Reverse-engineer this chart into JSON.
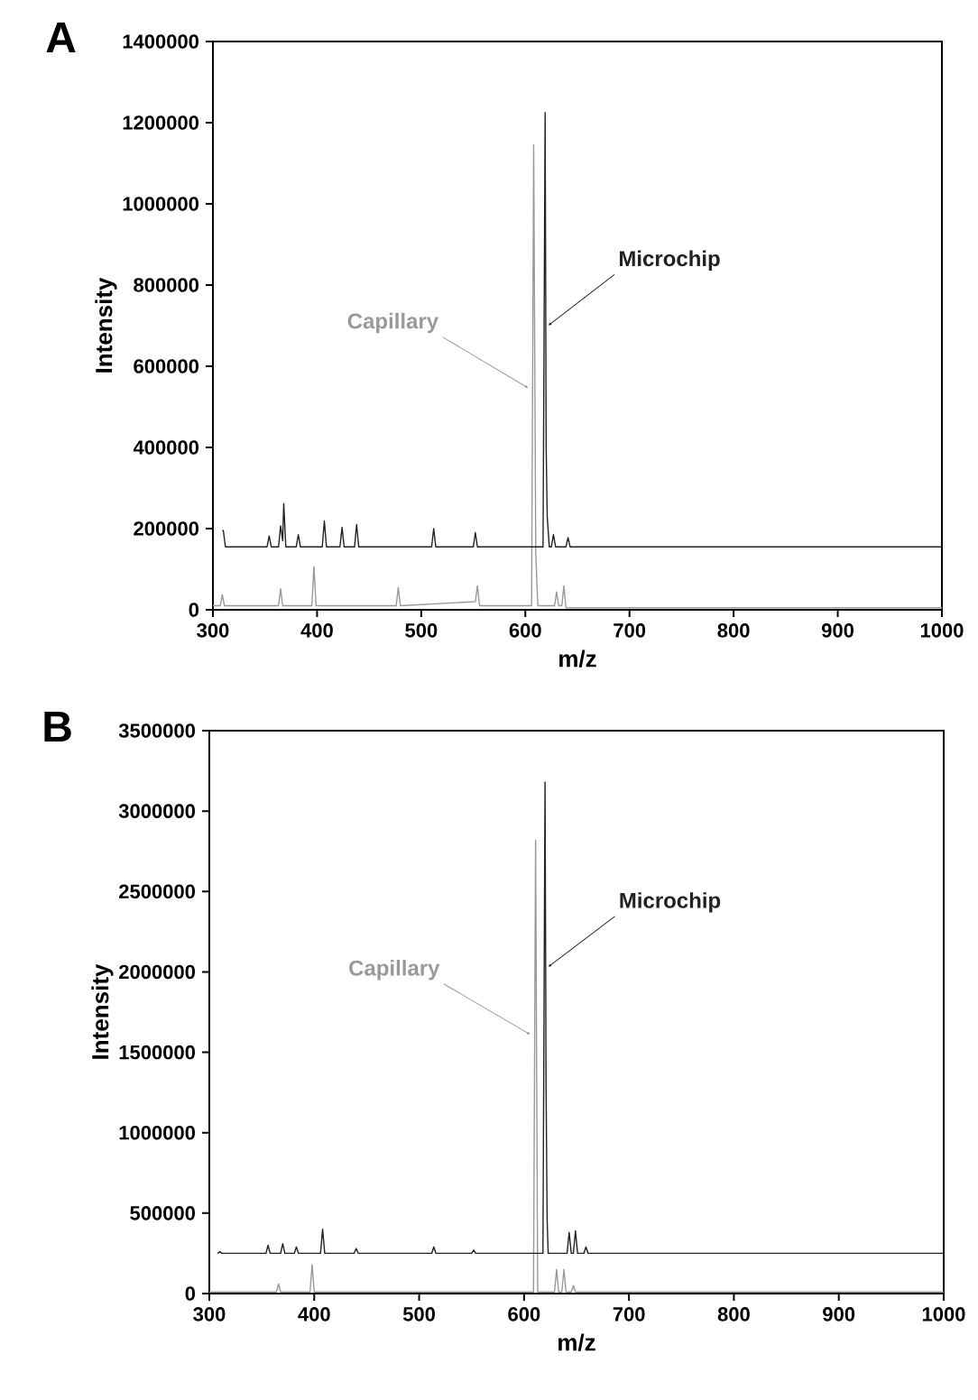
{
  "chart_data": [
    {
      "type": "line",
      "title": "A",
      "xlabel": "m/z",
      "ylabel": "Intensity",
      "xlim": [
        300,
        1000
      ],
      "xticks": [
        300,
        400,
        500,
        600,
        700,
        800,
        900,
        1000
      ],
      "ylim": [
        0,
        1400000
      ],
      "yticks": [
        0,
        200000,
        400000,
        600000,
        800000,
        1000000,
        1200000,
        1400000
      ],
      "grid": false,
      "legend": false,
      "series": [
        {
          "name": "Capillary",
          "color": "#999999",
          "x": [
            300,
            307,
            309,
            311,
            363,
            365,
            367,
            395,
            397,
            399,
            476,
            478,
            480,
            552,
            554,
            556,
            606,
            608,
            610,
            612,
            628,
            630,
            632,
            635,
            637,
            639,
            1000
          ],
          "values": [
            10000,
            10000,
            37000,
            10000,
            10000,
            52000,
            10000,
            10000,
            107000,
            10000,
            10000,
            55000,
            10000,
            20000,
            59000,
            10000,
            10000,
            1145000,
            140000,
            10000,
            10000,
            44000,
            10000,
            10000,
            59000,
            5000,
            5000
          ]
        },
        {
          "name": "Microchip",
          "color": "#222222",
          "x": [
            309,
            310,
            312,
            352,
            354,
            356,
            363,
            365,
            367,
            368,
            370,
            380,
            382,
            384,
            405,
            407,
            409,
            422,
            424,
            426,
            436,
            438,
            440,
            510,
            512,
            514,
            550,
            552,
            554,
            617,
            619,
            620,
            621,
            623,
            625,
            627,
            629,
            639,
            641,
            643,
            1000
          ],
          "values": [
            195000,
            195000,
            155000,
            155000,
            182000,
            155000,
            155000,
            207000,
            170000,
            262000,
            155000,
            155000,
            185000,
            155000,
            155000,
            219000,
            155000,
            155000,
            203000,
            155000,
            155000,
            210000,
            155000,
            155000,
            200000,
            155000,
            155000,
            190000,
            155000,
            155000,
            1225000,
            400000,
            230000,
            155000,
            155000,
            185000,
            155000,
            155000,
            178000,
            155000,
            155000
          ]
        }
      ]
    },
    {
      "type": "line",
      "title": "B",
      "xlabel": "m/z",
      "ylabel": "Intensity",
      "xlim": [
        300,
        1000
      ],
      "xticks": [
        300,
        400,
        500,
        600,
        700,
        800,
        900,
        1000
      ],
      "ylim": [
        0,
        3500000
      ],
      "yticks": [
        0,
        500000,
        1000000,
        1500000,
        2000000,
        2500000,
        3000000,
        3500000
      ],
      "grid": false,
      "legend": false,
      "series": [
        {
          "name": "Capillary",
          "color": "#999999",
          "x": [
            300,
            364,
            366,
            368,
            396,
            398,
            400,
            609,
            611,
            613,
            629,
            631,
            633,
            636,
            638,
            640,
            645,
            647,
            649,
            1000
          ],
          "values": [
            10000,
            10000,
            60000,
            10000,
            10000,
            180000,
            10000,
            10000,
            2820000,
            10000,
            10000,
            150000,
            10000,
            10000,
            150000,
            10000,
            10000,
            50000,
            10000,
            10000
          ]
        },
        {
          "name": "Microchip",
          "color": "#222222",
          "x": [
            308,
            310,
            312,
            354,
            356,
            358,
            368,
            370,
            372,
            381,
            383,
            385,
            406,
            408,
            410,
            438,
            440,
            442,
            512,
            514,
            516,
            550,
            552,
            554,
            618,
            620,
            621,
            622,
            623,
            625,
            641,
            643,
            645,
            647,
            649,
            651,
            657,
            659,
            661,
            1000
          ],
          "values": [
            250000,
            260000,
            250000,
            250000,
            300000,
            250000,
            250000,
            310000,
            250000,
            250000,
            290000,
            250000,
            250000,
            400000,
            250000,
            250000,
            280000,
            250000,
            250000,
            290000,
            250000,
            250000,
            270000,
            250000,
            250000,
            3180000,
            1280000,
            460000,
            250000,
            250000,
            250000,
            380000,
            250000,
            250000,
            390000,
            250000,
            250000,
            290000,
            250000,
            250000
          ]
        }
      ]
    }
  ]
}
